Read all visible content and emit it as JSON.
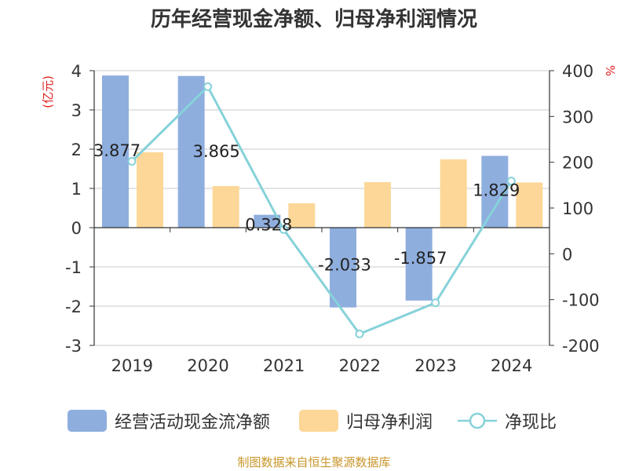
{
  "colors": {
    "cashflow": "#8eaede",
    "profit": "#fdd797",
    "ratio": "#86d2d9",
    "grid": "#c8c8c8",
    "axis": "#333333",
    "unit_label": "#e02020",
    "source": "#c8962a"
  },
  "legend": {
    "cashflow_label": "经营活动现金流净额",
    "profit_label": "归母净利润",
    "ratio_label": "净现比"
  },
  "source_text": "制图数据来自恒生聚源数据库",
  "chart_data": {
    "type": "bar",
    "title": "历年经营现金净额、归母净利润情况",
    "categories": [
      "2019",
      "2020",
      "2021",
      "2022",
      "2023",
      "2024"
    ],
    "y_left": {
      "label": "(亿元)",
      "ylim": [
        -3,
        4
      ],
      "ticks": [
        4,
        3,
        2,
        1,
        0,
        -1,
        -2,
        -3
      ]
    },
    "y_right": {
      "label": "%",
      "ylim": [
        -200,
        400
      ],
      "ticks": [
        400,
        300,
        200,
        100,
        0,
        -100,
        -200
      ]
    },
    "series": [
      {
        "name": "经营活动现金流净额",
        "type": "bar",
        "axis": "left",
        "values": [
          3.877,
          3.865,
          0.328,
          -2.033,
          -1.857,
          1.829
        ],
        "labels": [
          "3.877",
          "3.865",
          "0.328",
          "-2.033",
          "-1.857",
          "1.829"
        ]
      },
      {
        "name": "归母净利润",
        "type": "bar",
        "axis": "left",
        "values": [
          1.92,
          1.06,
          0.62,
          1.16,
          1.74,
          1.15
        ]
      },
      {
        "name": "净现比",
        "type": "line",
        "axis": "right",
        "values": [
          202,
          365,
          53,
          -175,
          -107,
          159
        ]
      }
    ]
  }
}
